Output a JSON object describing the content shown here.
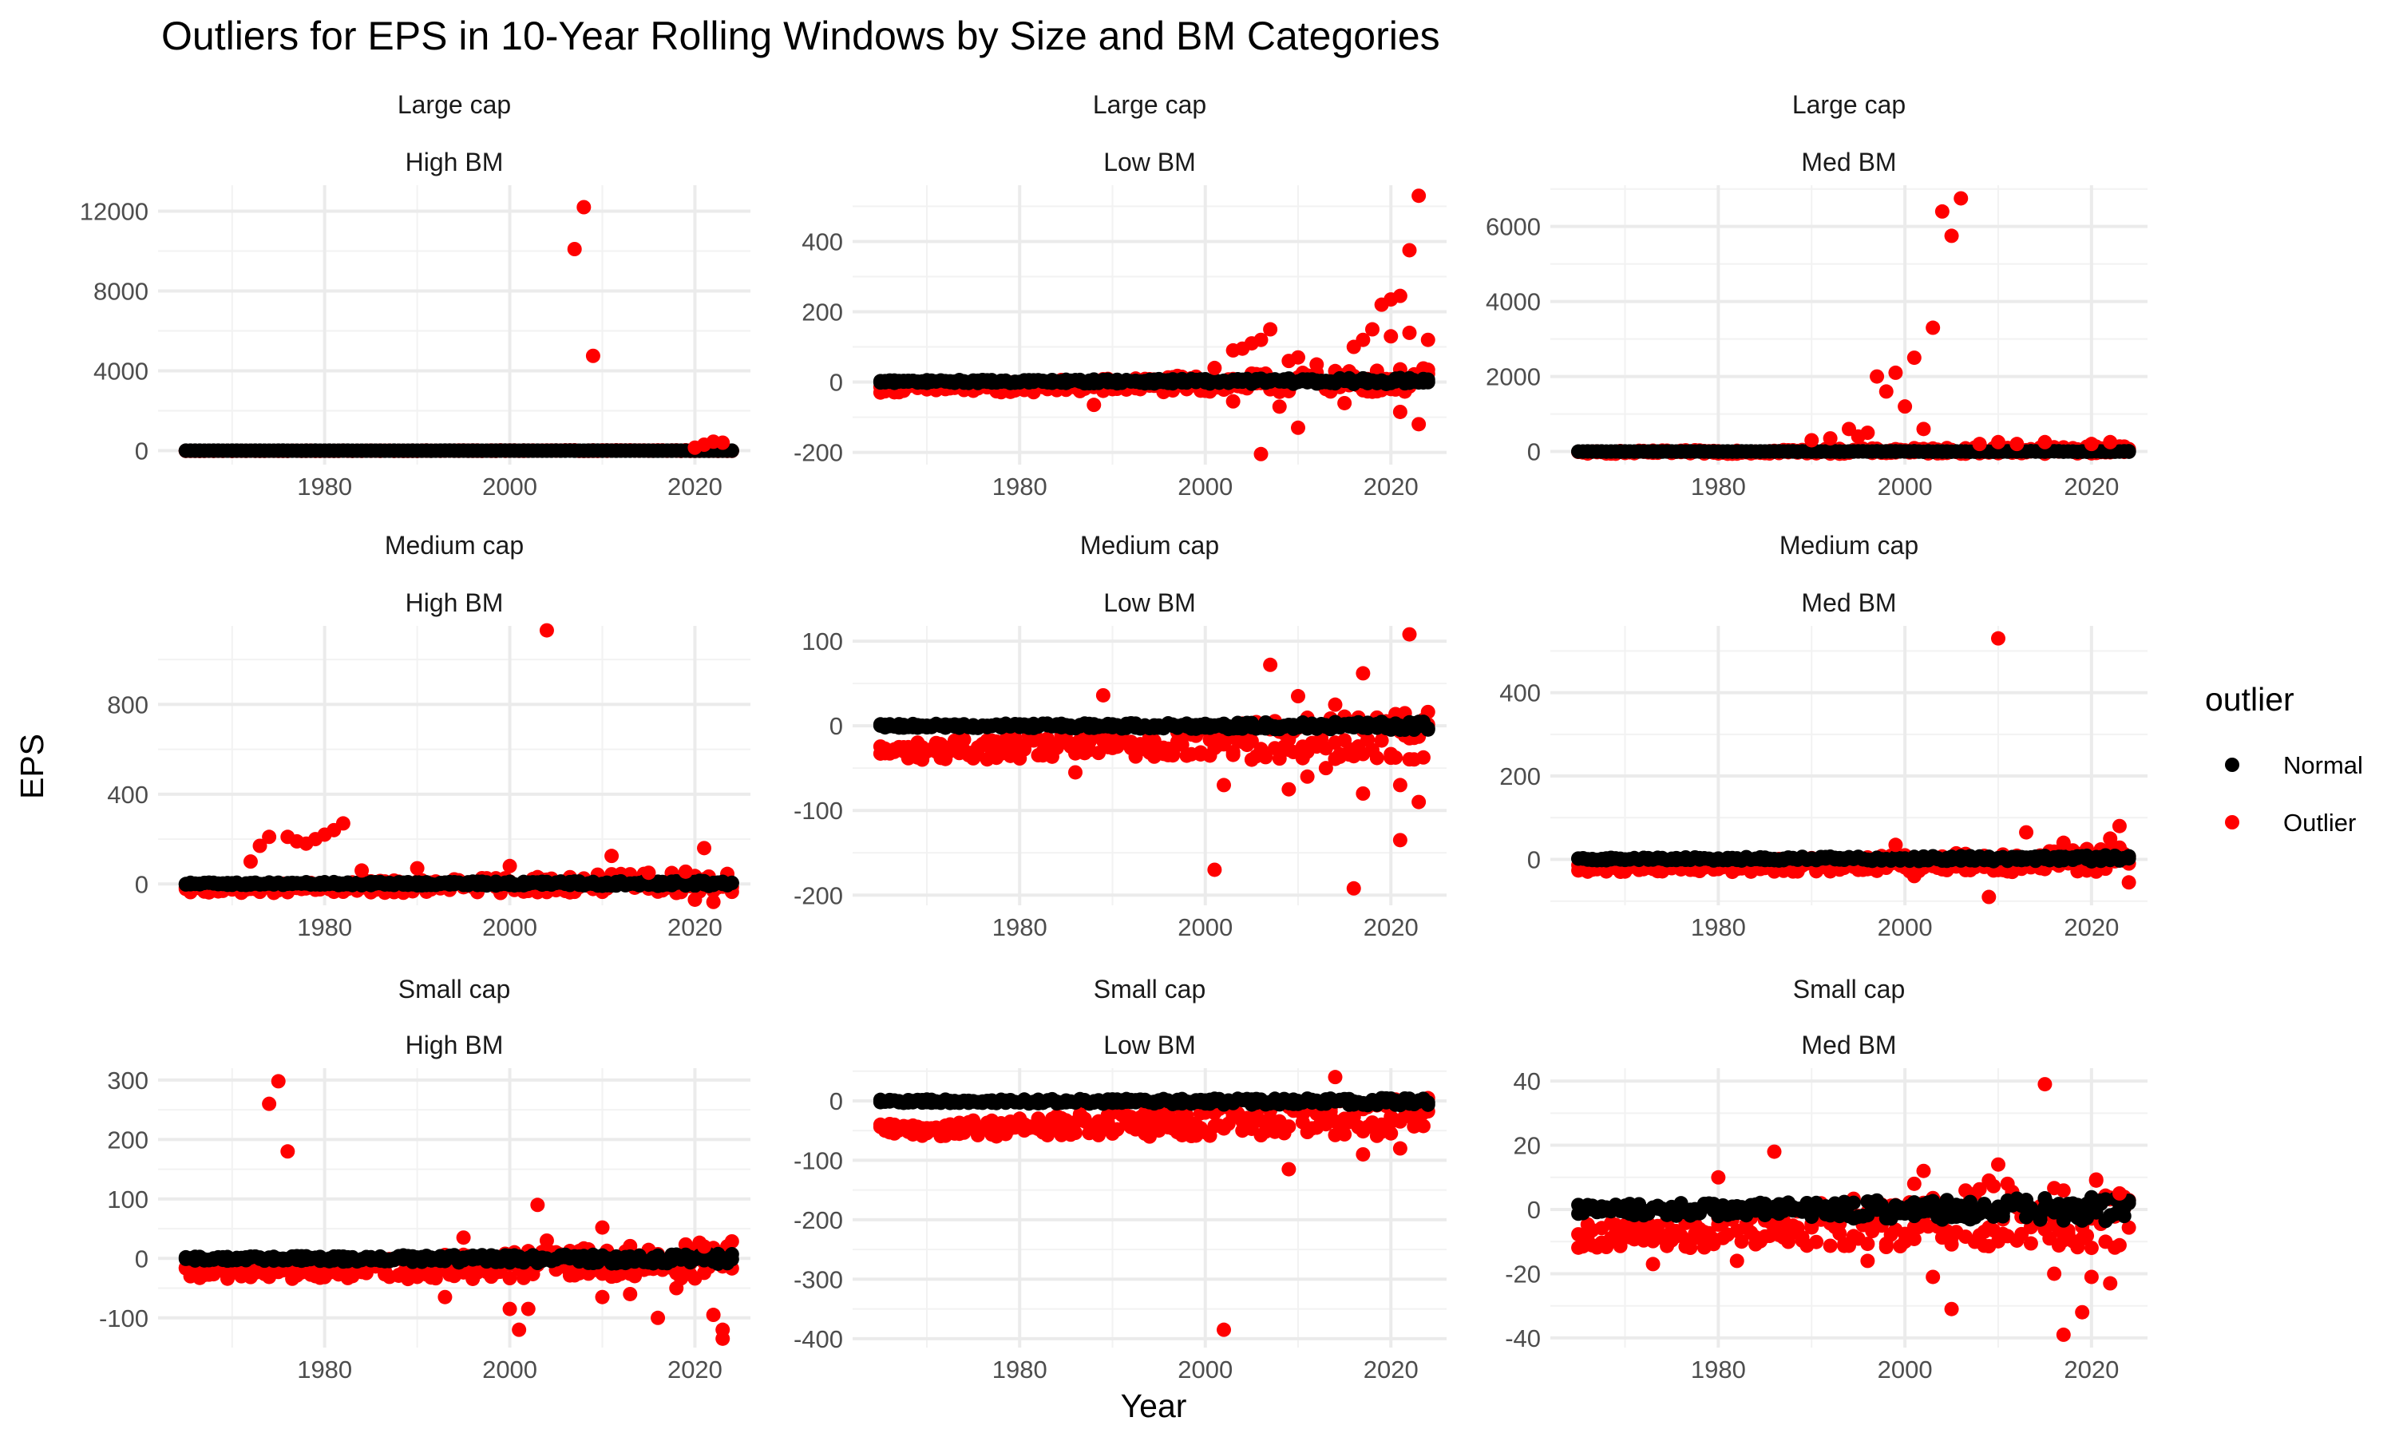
{
  "chart_data": {
    "type": "scatter",
    "title": "Outliers for EPS in 10-Year Rolling Windows by Size and BM Categories",
    "xlabel": "Year",
    "ylabel": "EPS",
    "legend": {
      "title": "outlier",
      "position": "right",
      "entries": [
        {
          "label": "Normal",
          "color": "#000000"
        },
        {
          "label": "Outlier",
          "color": "#ff0000"
        }
      ]
    },
    "grid": true,
    "xlim": [
      1962,
      2026
    ],
    "xticks": [
      1980,
      2000,
      2020
    ],
    "panels": [
      {
        "size": "Large cap",
        "bm": "High BM",
        "ylim": [
          -700,
          13300
        ],
        "yticks": [
          0,
          4000,
          8000,
          12000
        ],
        "yticklabels": [
          "0",
          "4000",
          "8000",
          "12000"
        ],
        "band_normal": [
          -8,
          8
        ],
        "band_outlier": [
          -15,
          25
        ],
        "outliers": [
          [
            2007,
            10100
          ],
          [
            2008,
            12200
          ],
          [
            2009,
            4750
          ],
          [
            2021,
            300
          ],
          [
            2022,
            450
          ],
          [
            2023,
            400
          ],
          [
            2020,
            150
          ]
        ]
      },
      {
        "size": "Large cap",
        "bm": "Low BM",
        "ylim": [
          -235,
          560
        ],
        "yticks": [
          -200,
          0,
          200,
          400
        ],
        "yticklabels": [
          "-200",
          "0",
          "200",
          "400"
        ],
        "band_normal": [
          -6,
          12
        ],
        "band_outlier": [
          -30,
          40
        ],
        "outliers": [
          [
            2023,
            530
          ],
          [
            2022,
            375
          ],
          [
            2021,
            245
          ],
          [
            2020,
            235
          ],
          [
            2019,
            220
          ],
          [
            2018,
            150
          ],
          [
            2017,
            120
          ],
          [
            2016,
            100
          ],
          [
            2007,
            150
          ],
          [
            2006,
            120
          ],
          [
            2005,
            110
          ],
          [
            2004,
            95
          ],
          [
            2003,
            90
          ],
          [
            2010,
            70
          ],
          [
            2009,
            60
          ],
          [
            1988,
            -65
          ],
          [
            2006,
            -205
          ],
          [
            2010,
            -130
          ],
          [
            2023,
            -120
          ],
          [
            2021,
            -85
          ],
          [
            2015,
            -60
          ],
          [
            2008,
            -70
          ],
          [
            2003,
            -55
          ],
          [
            2020,
            130
          ],
          [
            2022,
            140
          ],
          [
            2024,
            120
          ],
          [
            2012,
            50
          ],
          [
            2001,
            40
          ]
        ]
      },
      {
        "size": "Large cap",
        "bm": "Med BM",
        "ylim": [
          -350,
          7100
        ],
        "yticks": [
          0,
          2000,
          4000,
          6000
        ],
        "yticklabels": [
          "0",
          "2000",
          "4000",
          "6000"
        ],
        "band_normal": [
          -10,
          10
        ],
        "band_outlier": [
          -60,
          150
        ],
        "outliers": [
          [
            2006,
            6750
          ],
          [
            2004,
            6400
          ],
          [
            2005,
            5750
          ],
          [
            2003,
            3300
          ],
          [
            2001,
            2500
          ],
          [
            2000,
            1200
          ],
          [
            2002,
            600
          ],
          [
            1999,
            2100
          ],
          [
            1997,
            2000
          ],
          [
            1998,
            1600
          ],
          [
            1994,
            600
          ],
          [
            1995,
            400
          ],
          [
            1996,
            500
          ],
          [
            1990,
            300
          ],
          [
            1992,
            350
          ],
          [
            2015,
            250
          ],
          [
            2012,
            200
          ],
          [
            2010,
            250
          ],
          [
            2020,
            200
          ],
          [
            2022,
            250
          ],
          [
            2008,
            200
          ]
        ]
      },
      {
        "size": "Medium cap",
        "bm": "High BM",
        "ylim": [
          -95,
          1150
        ],
        "yticks": [
          0,
          400,
          800
        ],
        "yticklabels": [
          "0",
          "400",
          "800"
        ],
        "band_normal": [
          -10,
          15
        ],
        "band_outlier": [
          -40,
          60
        ],
        "outliers": [
          [
            2004,
            1130
          ],
          [
            1982,
            270
          ],
          [
            1981,
            240
          ],
          [
            1980,
            220
          ],
          [
            1979,
            200
          ],
          [
            1978,
            180
          ],
          [
            1977,
            190
          ],
          [
            1976,
            210
          ],
          [
            1974,
            210
          ],
          [
            1973,
            170
          ],
          [
            1972,
            100
          ],
          [
            2021,
            160
          ],
          [
            2011,
            125
          ],
          [
            2000,
            80
          ],
          [
            1990,
            70
          ],
          [
            2019,
            55
          ],
          [
            2022,
            -80
          ],
          [
            2020,
            -70
          ],
          [
            2015,
            50
          ],
          [
            1984,
            60
          ]
        ]
      },
      {
        "size": "Medium cap",
        "bm": "Low BM",
        "ylim": [
          -212,
          118
        ],
        "yticks": [
          -200,
          -100,
          0,
          100
        ],
        "yticklabels": [
          "-200",
          "-100",
          "0",
          "100"
        ],
        "band_normal": [
          -5,
          5
        ],
        "band_outlier": [
          -40,
          20
        ],
        "outliers": [
          [
            2022,
            108
          ],
          [
            2007,
            72
          ],
          [
            2017,
            62
          ],
          [
            1989,
            36
          ],
          [
            2010,
            35
          ],
          [
            2014,
            25
          ],
          [
            2001,
            -170
          ],
          [
            2016,
            -192
          ],
          [
            2021,
            -135
          ],
          [
            2023,
            -90
          ],
          [
            2017,
            -80
          ],
          [
            2009,
            -75
          ],
          [
            2002,
            -70
          ],
          [
            2011,
            -60
          ],
          [
            2021,
            -70
          ],
          [
            1986,
            -55
          ],
          [
            2013,
            -50
          ],
          [
            2005,
            -40
          ]
        ]
      },
      {
        "size": "Medium cap",
        "bm": "Med BM",
        "ylim": [
          -110,
          560
        ],
        "yticks": [
          0,
          200,
          400
        ],
        "yticklabels": [
          "0",
          "200",
          "400"
        ],
        "band_normal": [
          -5,
          10
        ],
        "band_outlier": [
          -30,
          30
        ],
        "outliers": [
          [
            2010,
            530
          ],
          [
            2023,
            80
          ],
          [
            2013,
            65
          ],
          [
            2009,
            -90
          ],
          [
            2024,
            -55
          ],
          [
            2022,
            50
          ],
          [
            2017,
            40
          ],
          [
            1999,
            35
          ],
          [
            2001,
            -40
          ]
        ]
      },
      {
        "size": "Small cap",
        "bm": "High BM",
        "ylim": [
          -150,
          320
        ],
        "yticks": [
          -100,
          0,
          100,
          200,
          300
        ],
        "yticklabels": [
          "-100",
          "0",
          "100",
          "200",
          "300"
        ],
        "band_normal": [
          -10,
          8
        ],
        "band_outlier": [
          -35,
          30
        ],
        "outliers": [
          [
            1975,
            298
          ],
          [
            1974,
            260
          ],
          [
            1976,
            180
          ],
          [
            2003,
            90
          ],
          [
            2010,
            52
          ],
          [
            2001,
            -120
          ],
          [
            2002,
            -85
          ],
          [
            2000,
            -85
          ],
          [
            2016,
            -100
          ],
          [
            2023,
            -135
          ],
          [
            2023,
            -120
          ],
          [
            2022,
            -95
          ],
          [
            2010,
            -65
          ],
          [
            2013,
            -60
          ],
          [
            1993,
            -65
          ],
          [
            2018,
            -50
          ],
          [
            2021,
            20
          ],
          [
            1995,
            35
          ],
          [
            2004,
            30
          ]
        ]
      },
      {
        "size": "Small cap",
        "bm": "Low BM",
        "ylim": [
          -415,
          55
        ],
        "yticks": [
          -400,
          -300,
          -200,
          -100,
          0
        ],
        "yticklabels": [
          "-400",
          "-300",
          "-200",
          "-100",
          "0"
        ],
        "band_normal": [
          -8,
          5
        ],
        "band_outlier": [
          -60,
          8
        ],
        "outliers": [
          [
            2002,
            -385
          ],
          [
            2009,
            -115
          ],
          [
            2021,
            -80
          ],
          [
            2017,
            -90
          ],
          [
            2014,
            40
          ],
          [
            1994,
            -60
          ],
          [
            1990,
            -55
          ],
          [
            1985,
            -45
          ],
          [
            1998,
            -45
          ],
          [
            2004,
            -50
          ],
          [
            2012,
            -45
          ],
          [
            2019,
            -40
          ],
          [
            1980,
            -30
          ]
        ]
      },
      {
        "size": "Small cap",
        "bm": "Med BM",
        "ylim": [
          -43,
          44
        ],
        "yticks": [
          -40,
          -20,
          0,
          20,
          40
        ],
        "yticklabels": [
          "-40",
          "-20",
          "0",
          "20",
          "40"
        ],
        "band_normal": [
          -4,
          4
        ],
        "band_outlier": [
          -12,
          12
        ],
        "outliers": [
          [
            2015,
            39
          ],
          [
            1986,
            18
          ],
          [
            2010,
            14
          ],
          [
            2002,
            12
          ],
          [
            2005,
            -31
          ],
          [
            2003,
            -21
          ],
          [
            2017,
            -39
          ],
          [
            2019,
            -32
          ],
          [
            2016,
            -20
          ],
          [
            2020,
            -21
          ],
          [
            2022,
            -23
          ],
          [
            1973,
            -17
          ],
          [
            1982,
            -16
          ],
          [
            1996,
            -16
          ],
          [
            2009,
            9
          ],
          [
            1980,
            10
          ],
          [
            2023,
            5
          ],
          [
            2001,
            8
          ]
        ]
      }
    ]
  }
}
